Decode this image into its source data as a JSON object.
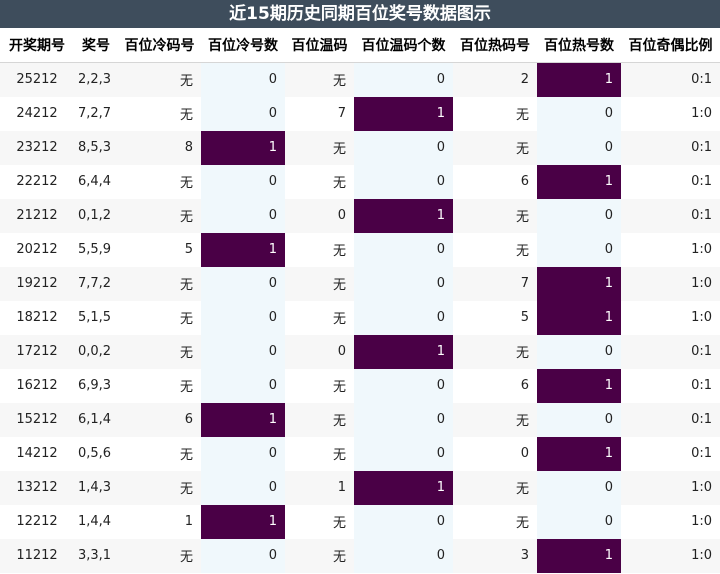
{
  "title": "近15期历史同期百位奖号数据图示",
  "headers": [
    "开奖期号",
    "奖号",
    "百位冷码号",
    "百位冷号数",
    "百位温码",
    "百位温码个数",
    "百位热码号",
    "百位热号数",
    "百位奇偶比例"
  ],
  "rows": [
    [
      "25212",
      "2,2,3",
      "无",
      "0",
      "无",
      "0",
      "2",
      "1",
      "0:1"
    ],
    [
      "24212",
      "7,2,7",
      "无",
      "0",
      "7",
      "1",
      "无",
      "0",
      "1:0"
    ],
    [
      "23212",
      "8,5,3",
      "8",
      "1",
      "无",
      "0",
      "无",
      "0",
      "0:1"
    ],
    [
      "22212",
      "6,4,4",
      "无",
      "0",
      "无",
      "0",
      "6",
      "1",
      "0:1"
    ],
    [
      "21212",
      "0,1,2",
      "无",
      "0",
      "0",
      "1",
      "无",
      "0",
      "0:1"
    ],
    [
      "20212",
      "5,5,9",
      "5",
      "1",
      "无",
      "0",
      "无",
      "0",
      "1:0"
    ],
    [
      "19212",
      "7,7,2",
      "无",
      "0",
      "无",
      "0",
      "7",
      "1",
      "1:0"
    ],
    [
      "18212",
      "5,1,5",
      "无",
      "0",
      "无",
      "0",
      "5",
      "1",
      "1:0"
    ],
    [
      "17212",
      "0,0,2",
      "无",
      "0",
      "0",
      "1",
      "无",
      "0",
      "0:1"
    ],
    [
      "16212",
      "6,9,3",
      "无",
      "0",
      "无",
      "0",
      "6",
      "1",
      "0:1"
    ],
    [
      "15212",
      "6,1,4",
      "6",
      "1",
      "无",
      "0",
      "无",
      "0",
      "0:1"
    ],
    [
      "14212",
      "0,5,6",
      "无",
      "0",
      "无",
      "0",
      "0",
      "1",
      "0:1"
    ],
    [
      "13212",
      "1,4,3",
      "无",
      "0",
      "1",
      "1",
      "无",
      "0",
      "1:0"
    ],
    [
      "12212",
      "1,4,4",
      "1",
      "1",
      "无",
      "0",
      "无",
      "0",
      "1:0"
    ],
    [
      "11212",
      "3,3,1",
      "无",
      "0",
      "无",
      "0",
      "3",
      "1",
      "1:0"
    ]
  ],
  "colors": {
    "title_bg": "#3e4d5c",
    "highlight_bg": "#4a0046",
    "count_col_bg": "#f0f8fc"
  }
}
